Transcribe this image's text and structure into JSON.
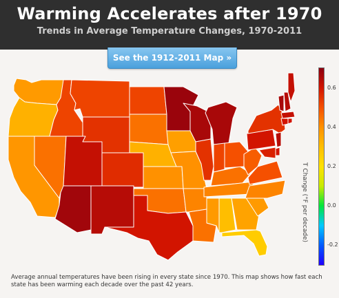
{
  "header": {
    "title": "Warming Accelerates after 1970",
    "subtitle": "Trends in Average Temperature Changes, 1970-2011"
  },
  "button": {
    "label": "See the 1912-2011 Map »"
  },
  "legend": {
    "label": "T Change (°F per decade)",
    "ticks": [
      "0.6",
      "0.4",
      "0.2",
      "0.0",
      "-0.2"
    ],
    "range": [
      -0.3,
      0.7
    ]
  },
  "caption": "Average annual temperatures have been rising in every state since 1970. This map shows how fast each state has been warming each decade over the past 42 years.",
  "map_data": {
    "type": "choropleth",
    "states": [
      {
        "state": "WA",
        "value": 0.38
      },
      {
        "state": "OR",
        "value": 0.33
      },
      {
        "state": "CA",
        "value": 0.39
      },
      {
        "state": "ID",
        "value": 0.52
      },
      {
        "state": "NV",
        "value": 0.45
      },
      {
        "state": "MT",
        "value": 0.52
      },
      {
        "state": "WY",
        "value": 0.55
      },
      {
        "state": "UT",
        "value": 0.62
      },
      {
        "state": "AZ",
        "value": 0.67
      },
      {
        "state": "CO",
        "value": 0.56
      },
      {
        "state": "NM",
        "value": 0.64
      },
      {
        "state": "ND",
        "value": 0.52
      },
      {
        "state": "SD",
        "value": 0.45
      },
      {
        "state": "NE",
        "value": 0.33
      },
      {
        "state": "KS",
        "value": 0.4
      },
      {
        "state": "OK",
        "value": 0.45
      },
      {
        "state": "TX",
        "value": 0.6
      },
      {
        "state": "MN",
        "value": 0.68
      },
      {
        "state": "IA",
        "value": 0.37
      },
      {
        "state": "MO",
        "value": 0.4
      },
      {
        "state": "AR",
        "value": 0.42
      },
      {
        "state": "LA",
        "value": 0.45
      },
      {
        "state": "WI",
        "value": 0.66
      },
      {
        "state": "IL",
        "value": 0.55
      },
      {
        "state": "MI",
        "value": 0.66
      },
      {
        "state": "IN",
        "value": 0.52
      },
      {
        "state": "KY",
        "value": 0.45
      },
      {
        "state": "TN",
        "value": 0.42
      },
      {
        "state": "MS",
        "value": 0.38
      },
      {
        "state": "AL",
        "value": 0.3
      },
      {
        "state": "OH",
        "value": 0.5
      },
      {
        "state": "GA",
        "value": 0.36
      },
      {
        "state": "FL",
        "value": 0.26
      },
      {
        "state": "SC",
        "value": 0.38
      },
      {
        "state": "NC",
        "value": 0.42
      },
      {
        "state": "VA",
        "value": 0.5
      },
      {
        "state": "WV",
        "value": 0.48
      },
      {
        "state": "PA",
        "value": 0.6
      },
      {
        "state": "NY",
        "value": 0.55
      },
      {
        "state": "VT",
        "value": 0.66
      },
      {
        "state": "NH",
        "value": 0.64
      },
      {
        "state": "ME",
        "value": 0.62
      },
      {
        "state": "MA",
        "value": 0.62
      },
      {
        "state": "CT",
        "value": 0.6
      },
      {
        "state": "RI",
        "value": 0.6
      },
      {
        "state": "NJ",
        "value": 0.64
      },
      {
        "state": "DE",
        "value": 0.6
      },
      {
        "state": "MD",
        "value": 0.58
      }
    ]
  }
}
